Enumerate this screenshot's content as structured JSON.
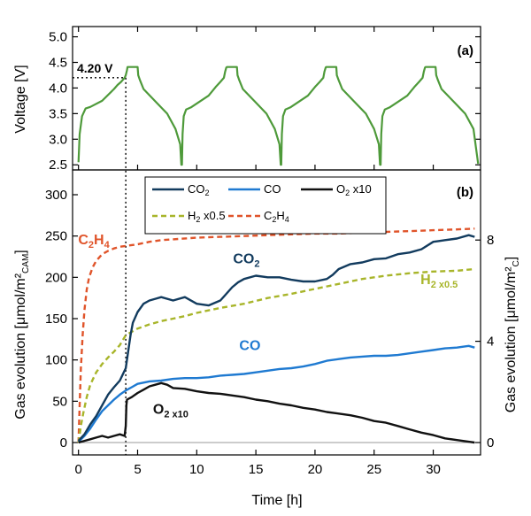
{
  "colors": {
    "voltage": "#4e9a3a",
    "co2": "#123b5e",
    "co": "#1f7ad1",
    "o2": "#111111",
    "h2": "#a8b52a",
    "c2h4": "#e0542a",
    "zero_line": "#9a9a9a",
    "axis": "#000000"
  },
  "chart_data": [
    {
      "type": "line",
      "panel_label": "(a)",
      "ylabel": "Voltage [V]",
      "ylim": [
        2.4,
        5.2
      ],
      "yticks": [
        "2.5",
        "3.0",
        "3.5",
        "4.0",
        "4.5",
        "5.0"
      ],
      "xlim": [
        -0.5,
        34
      ],
      "annotation": {
        "label": "4.20 V",
        "voltage": 4.2,
        "time": 4.0
      },
      "series": [
        {
          "name": "Voltage",
          "x": [
            0.0,
            0.1,
            0.3,
            0.6,
            1.0,
            2.0,
            3.0,
            3.3,
            3.6,
            3.9,
            4.0,
            4.1,
            4.15,
            5.0,
            5.05,
            5.2,
            5.5,
            6.5,
            7.5,
            8.2,
            8.6,
            8.7,
            8.75,
            8.8,
            8.9,
            9.1,
            9.5,
            11.0,
            11.6,
            12.0,
            12.3,
            12.4,
            12.5,
            12.55,
            13.4,
            13.45,
            13.6,
            13.9,
            14.9,
            15.9,
            16.6,
            17.0,
            17.1,
            17.15,
            17.2,
            17.3,
            17.5,
            17.9,
            19.4,
            20.0,
            20.4,
            20.7,
            20.8,
            20.9,
            20.95,
            21.8,
            21.85,
            22.0,
            22.3,
            23.3,
            24.3,
            25.0,
            25.4,
            25.5,
            25.55,
            25.6,
            25.7,
            25.9,
            26.3,
            27.8,
            28.4,
            28.8,
            29.1,
            29.2,
            29.3,
            29.35,
            30.2,
            30.25,
            30.4,
            30.7,
            31.7,
            32.7,
            33.4,
            33.6,
            33.8
          ],
          "y": [
            2.55,
            3.1,
            3.45,
            3.6,
            3.63,
            3.75,
            3.98,
            4.06,
            4.12,
            4.2,
            4.25,
            4.35,
            4.41,
            4.41,
            4.25,
            4.15,
            3.98,
            3.74,
            3.5,
            3.2,
            2.9,
            2.5,
            2.5,
            3.1,
            3.45,
            3.58,
            3.62,
            3.85,
            4.02,
            4.12,
            4.2,
            4.32,
            4.4,
            4.41,
            4.41,
            4.25,
            4.15,
            3.98,
            3.74,
            3.5,
            3.2,
            2.9,
            2.5,
            2.5,
            3.1,
            3.45,
            3.58,
            3.62,
            3.85,
            4.02,
            4.12,
            4.2,
            4.32,
            4.4,
            4.41,
            4.41,
            4.25,
            4.15,
            3.98,
            3.74,
            3.5,
            3.2,
            2.9,
            2.5,
            2.5,
            3.1,
            3.45,
            3.58,
            3.62,
            3.85,
            4.02,
            4.12,
            4.2,
            4.32,
            4.4,
            4.41,
            4.41,
            4.25,
            4.15,
            3.98,
            3.74,
            3.5,
            3.2,
            2.85,
            2.52
          ]
        }
      ]
    },
    {
      "type": "line",
      "panel_label": "(b)",
      "xlabel": "Time [h]",
      "ylabel": "Gas evolution [μmol/m² CAM]",
      "ylabel_main": "Gas evolution [μmol/m²",
      "ylabel_sub": "CAM",
      "ylabel_close": "]",
      "y2label": "Gas evolution [μmol/m² C]",
      "y2label_main": "Gas evolution [μmol/m²",
      "y2label_sub": "C",
      "y2label_close": "]",
      "xlim": [
        -0.5,
        34
      ],
      "ylim": [
        -15,
        330
      ],
      "xticks": [
        "0",
        "5",
        "10",
        "15",
        "20",
        "25",
        "30"
      ],
      "yticks": [
        "0",
        "50",
        "100",
        "150",
        "200",
        "250",
        "300"
      ],
      "y2lim": [
        -0.49,
        10.77
      ],
      "y2ticks": [
        "0",
        "4",
        "8"
      ],
      "vline_time": 4.0,
      "legend": {
        "position": "top",
        "entries": [
          {
            "series": "CO2",
            "main": "CO",
            "sub": "2",
            "style": "solid"
          },
          {
            "series": "CO",
            "main": "CO",
            "sub": "",
            "style": "solid"
          },
          {
            "series": "O2",
            "main": "O",
            "sub": "2",
            "suffix": " x10",
            "style": "solid"
          },
          {
            "series": "H2",
            "main": "H",
            "sub": "2",
            "suffix": " x0.5",
            "style": "dashed"
          },
          {
            "series": "C2H4",
            "main": "C",
            "sub": "2",
            "mid": "H",
            "sub2": "4",
            "style": "dashed"
          }
        ]
      },
      "annotations": [
        {
          "series": "C2H4",
          "main": "C",
          "sub": "2",
          "mid": "H",
          "sub2": "4",
          "time": 1.3,
          "value": 240
        },
        {
          "series": "CO2",
          "main": "CO",
          "sub": "2",
          "time": 14.2,
          "value": 217
        },
        {
          "series": "H2",
          "main": "H",
          "sub": "2 x0.5",
          "time": 30.5,
          "value": 192
        },
        {
          "series": "CO",
          "main": "CO",
          "sub": "",
          "time": 14.5,
          "value": 112
        },
        {
          "series": "O2",
          "main": "O",
          "sub": "2 x10",
          "time": 7.8,
          "value": 35
        }
      ],
      "series": [
        {
          "name": "CO2",
          "x": [
            0.0,
            0.5,
            1.0,
            1.5,
            2.0,
            2.5,
            3.0,
            3.5,
            4.0,
            4.2,
            4.4,
            4.6,
            5.0,
            5.5,
            6.0,
            6.5,
            7.0,
            8.0,
            9.0,
            10.0,
            11.0,
            12.0,
            12.5,
            13.0,
            13.5,
            14.0,
            15.0,
            16.0,
            17.0,
            18.0,
            19.0,
            20.0,
            21.0,
            21.5,
            22.0,
            23.0,
            24.0,
            25.0,
            26.0,
            27.0,
            28.0,
            29.0,
            30.0,
            30.5,
            31.0,
            32.0,
            33.0,
            33.5
          ],
          "y": [
            2,
            10,
            22,
            32,
            45,
            58,
            67,
            75,
            90,
            110,
            130,
            145,
            158,
            168,
            172,
            174,
            176,
            172,
            176,
            168,
            166,
            172,
            180,
            188,
            194,
            198,
            202,
            200,
            200,
            197,
            195,
            195,
            198,
            203,
            210,
            216,
            218,
            222,
            223,
            228,
            230,
            234,
            243,
            244,
            245,
            247,
            251,
            249
          ]
        },
        {
          "name": "CO",
          "x": [
            0.0,
            0.5,
            1.0,
            1.5,
            2.0,
            2.5,
            3.0,
            3.5,
            4.0,
            4.5,
            5.0,
            6.0,
            7.0,
            8.0,
            9.0,
            10.0,
            11.0,
            12.0,
            13.0,
            14.0,
            15.0,
            16.0,
            17.0,
            18.0,
            19.0,
            20.0,
            21.0,
            22.0,
            23.0,
            24.0,
            25.0,
            26.0,
            27.0,
            28.0,
            29.0,
            30.0,
            31.0,
            32.0,
            33.0,
            33.5
          ],
          "y": [
            1,
            8,
            17,
            28,
            38,
            45,
            52,
            58,
            63,
            67,
            71,
            74,
            75,
            77,
            78,
            78,
            79,
            81,
            82,
            83,
            85,
            87,
            89,
            90,
            92,
            95,
            99,
            101,
            103,
            104,
            105,
            105,
            106,
            108,
            110,
            112,
            114,
            115,
            117,
            115
          ]
        },
        {
          "name": "O2",
          "x": [
            0.0,
            0.5,
            1.0,
            1.5,
            2.0,
            2.5,
            3.0,
            3.5,
            3.9,
            4.0,
            4.05,
            4.1,
            4.5,
            5.0,
            5.5,
            6.0,
            6.5,
            7.0,
            7.5,
            8.0,
            9.0,
            10.0,
            11.0,
            12.0,
            13.0,
            14.0,
            15.0,
            16.0,
            17.0,
            18.0,
            19.0,
            20.0,
            21.0,
            22.0,
            23.0,
            24.0,
            25.0,
            26.0,
            27.0,
            28.0,
            29.0,
            30.0,
            31.0,
            32.0,
            33.0,
            33.5
          ],
          "y": [
            0,
            2,
            4,
            6,
            8,
            6,
            8,
            10,
            8,
            20,
            45,
            52,
            55,
            60,
            64,
            68,
            70,
            72,
            70,
            66,
            65,
            62,
            60,
            59,
            57,
            55,
            52,
            50,
            47,
            45,
            42,
            40,
            37,
            35,
            33,
            30,
            26,
            24,
            20,
            16,
            12,
            9,
            5,
            3,
            1,
            0
          ]
        },
        {
          "name": "H2",
          "x": [
            0.0,
            0.2,
            0.4,
            0.7,
            1.0,
            1.5,
            2.0,
            2.5,
            3.0,
            3.5,
            4.0,
            5.0,
            6.0,
            7.0,
            8.0,
            9.0,
            10.0,
            12.0,
            14.0,
            16.0,
            18.0,
            20.0,
            22.0,
            24.0,
            26.0,
            28.0,
            30.0,
            32.0,
            33.5
          ],
          "y": [
            0,
            20,
            35,
            55,
            70,
            85,
            95,
            103,
            110,
            118,
            130,
            138,
            143,
            147,
            150,
            153,
            157,
            163,
            168,
            175,
            180,
            186,
            192,
            198,
            202,
            205,
            207,
            208,
            210
          ]
        },
        {
          "name": "C2H4",
          "x": [
            0.0,
            0.1,
            0.2,
            0.35,
            0.5,
            0.7,
            0.9,
            1.2,
            1.5,
            2.0,
            2.5,
            3.0,
            3.5,
            4.0,
            5.0,
            6.0,
            7.0,
            8.0,
            10.0,
            12.0,
            14.0,
            16.0,
            18.0,
            20.0,
            22.0,
            24.0,
            26.0,
            28.0,
            30.0,
            32.0,
            33.5
          ],
          "y": [
            0,
            45,
            90,
            130,
            160,
            185,
            200,
            212,
            220,
            228,
            232,
            235,
            237,
            238,
            240,
            243,
            245,
            246,
            248,
            249,
            250,
            251,
            252,
            253,
            253,
            254,
            255,
            256,
            257,
            258,
            259
          ]
        }
      ]
    }
  ]
}
